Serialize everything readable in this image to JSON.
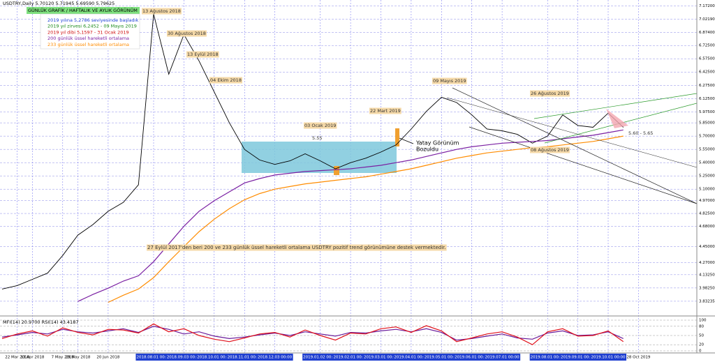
{
  "chart_data": [
    {
      "type": "line",
      "title": "USDTRY,Daily  5.70120 5.71945 5.69590 5.79625",
      "box_title": "GÜNLÜK GRAFİK / HAFTALIK VE AYLIK GÖRÜNÜM",
      "notes": [
        {
          "text": "2019 yılına 5,2786 seviyesinde başladık",
          "color": "#1a3fd6"
        },
        {
          "text": "2019 yıl zirvesi 6,2452 - 09 Mayıs 2019",
          "color": "#1a8a1a"
        },
        {
          "text": "2019 yıl dibi 5,1597 - 31 Ocak 2019",
          "color": "#d01010"
        }
      ],
      "annotations": [
        "13 Ağustos 2018",
        "30 Ağustos 2018",
        "13 Eylül 2018",
        "04 Ekim 2018",
        "03 Ocak 2019",
        "5.55",
        "22 Mart 2019",
        "09 Mayıs 2019",
        "26 Ağustos 2019",
        "08 Ağustos 2019",
        "Yatay Görünüm",
        "Bozuldu",
        "5.60 - 5.65"
      ],
      "footnote": "27 Eylül 2017'den beri 200 ve 233 günlük üssel hareketli ortalama USDTRY pozitif trend görünümüne destek vermektedir.",
      "categories": [
        null,
        "22 Mar 2018",
        "13 Apr 2018",
        null,
        "7 May 2018",
        "29 May 2018",
        null,
        "20 Jun 2018",
        null,
        null,
        "2018.08.01 00:00",
        null,
        "2018.09.03 00:00",
        null,
        "2018.10.01 00:00",
        null,
        "2018.11.01 00:00",
        null,
        "2018.12.03 00:00",
        null,
        null,
        "2019.01.02 00:00",
        null,
        "2019.02.01 00:00",
        null,
        "2019.03.01 00:00",
        null,
        "2019.04.01 00:00",
        null,
        "2019.05.01 00:00",
        null,
        "2019.06.01 00:00",
        null,
        "2019.07.01 00:00",
        null,
        null,
        "2019.08.01 00:00",
        null,
        "2019.09.01 00:00",
        null,
        "2019.10.01 00:00",
        null,
        "28 Oct 2019",
        null
      ],
      "series": [
        {
          "color": "#000000",
          "values": [
            3.97,
            4.01,
            4.08,
            4.15,
            4.35,
            4.58,
            4.7,
            4.85,
            4.95,
            5.15,
            7.08,
            6.4,
            6.85,
            6.55,
            6.2,
            5.85,
            5.55,
            5.43,
            5.38,
            5.42,
            5.5,
            5.42,
            5.33,
            5.4,
            5.45,
            5.52,
            5.6,
            5.78,
            5.98,
            6.14,
            6.08,
            5.94,
            5.78,
            5.76,
            5.72,
            5.62,
            5.7,
            5.94,
            5.82,
            5.8,
            5.96,
            5.8,
            null,
            null
          ]
        },
        {
          "name": "200 günlük üssel hareketli ortalama",
          "color": "#7a1fa2",
          "values": [
            null,
            null,
            null,
            null,
            null,
            3.83,
            3.91,
            3.98,
            4.06,
            4.12,
            4.28,
            4.48,
            4.68,
            4.85,
            4.97,
            5.07,
            5.17,
            5.22,
            5.26,
            5.28,
            5.3,
            5.31,
            5.32,
            5.33,
            5.35,
            5.37,
            5.4,
            5.43,
            5.47,
            5.51,
            5.55,
            5.58,
            5.6,
            5.62,
            5.63,
            5.64,
            5.65,
            5.67,
            5.69,
            5.71,
            5.74,
            5.77,
            null,
            null
          ]
        },
        {
          "name": "233 günlük üssel hareketli ortalama",
          "color": "#ff8c00",
          "values": [
            null,
            null,
            null,
            null,
            null,
            null,
            null,
            3.82,
            3.9,
            3.97,
            4.1,
            4.28,
            4.45,
            4.62,
            4.76,
            4.88,
            4.98,
            5.05,
            5.1,
            5.13,
            5.16,
            5.18,
            5.2,
            5.22,
            5.24,
            5.27,
            5.3,
            5.33,
            5.37,
            5.41,
            5.45,
            5.48,
            5.51,
            5.53,
            5.55,
            5.57,
            5.58,
            5.6,
            5.62,
            5.64,
            5.67,
            5.7,
            null,
            null
          ]
        }
      ],
      "ylim": [
        3.8,
        7.2
      ],
      "yticks": [
        {
          "value": 7.172,
          "label": "7.17200"
        },
        {
          "value": 7.0219,
          "label": "7.02190"
        },
        {
          "value": 6.874,
          "label": "6.87400"
        },
        {
          "value": 6.725,
          "label": "6.72500"
        },
        {
          "value": 6.575,
          "label": "6.57500"
        },
        {
          "value": 6.425,
          "label": "6.42500"
        },
        {
          "value": 6.275,
          "label": "6.27500"
        },
        {
          "value": 6.125,
          "label": "6.12500"
        },
        {
          "value": 5.975,
          "label": "5.97500"
        },
        {
          "value": 5.85,
          "label": "5.85000"
        },
        {
          "value": 5.7,
          "label": "5.70000"
        },
        {
          "value": 5.55,
          "label": "5.55000"
        },
        {
          "value": 5.4,
          "label": "5.40000"
        },
        {
          "value": 5.25,
          "label": "5.25000"
        },
        {
          "value": 5.1,
          "label": "5.10000"
        },
        {
          "value": 4.97,
          "label": "4.97000"
        },
        {
          "value": 4.825,
          "label": "4.82500"
        },
        {
          "value": 4.68,
          "label": "4.68000"
        },
        {
          "value": 4.45,
          "label": "4.45000"
        },
        {
          "value": 4.27,
          "label": "4.27000"
        },
        {
          "value": 4.1325,
          "label": "4.13250"
        },
        {
          "value": 3.9825,
          "label": "3.98250"
        },
        {
          "value": 3.83235,
          "label": "3.83235"
        }
      ],
      "grid": true
    },
    {
      "type": "line",
      "title": "MFI(14) 20.9700 RSI(14) 43.4187",
      "series": [
        {
          "name": "MFI(14)",
          "color": "#6a1b9a",
          "values": [
            45,
            52,
            60,
            55,
            70,
            62,
            58,
            65,
            72,
            60,
            80,
            70,
            55,
            62,
            48,
            40,
            45,
            52,
            58,
            50,
            62,
            55,
            48,
            60,
            58,
            65,
            70,
            62,
            72,
            60,
            35,
            40,
            48,
            55,
            42,
            38,
            58,
            65,
            50,
            52,
            62,
            40,
            null,
            null
          ]
        },
        {
          "name": "RSI(14)",
          "color": "#e0101a",
          "values": [
            40,
            55,
            65,
            48,
            75,
            60,
            52,
            70,
            68,
            58,
            88,
            62,
            72,
            50,
            38,
            30,
            42,
            55,
            60,
            45,
            68,
            50,
            35,
            58,
            55,
            72,
            78,
            60,
            82,
            65,
            30,
            42,
            55,
            62,
            45,
            20,
            62,
            72,
            48,
            50,
            65,
            30,
            null,
            null
          ]
        }
      ],
      "ylim": [
        0,
        100
      ],
      "yticks": [
        0,
        20,
        50,
        80,
        100
      ],
      "grid": true
    }
  ]
}
